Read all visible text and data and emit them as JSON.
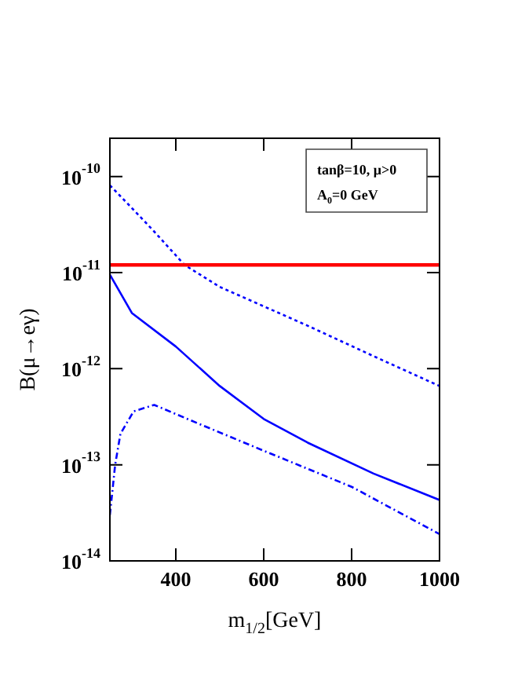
{
  "chart_data": {
    "type": "line",
    "xlabel": "m$_{1/2}$[GeV]",
    "ylabel": "B(μ→eγ)",
    "annotations": [
      "tanβ=10, μ>0",
      "A$_{0}$=0 GeV"
    ],
    "log": "y",
    "grid": false,
    "legend": false,
    "marker": "none",
    "xlim": [
      250,
      1000
    ],
    "xticks": [
      400,
      600,
      800,
      1000
    ],
    "ylim": [
      1e-14,
      2.5e-10
    ],
    "yticks": [
      {
        "value": 1e-14,
        "label": "10$^{-14}$"
      },
      {
        "value": 1e-13,
        "label": "10$^{-13}$"
      },
      {
        "value": 1e-12,
        "label": "10$^{-12}$"
      },
      {
        "value": 1e-11,
        "label": "10$^{-11}$"
      },
      {
        "value": 1e-10,
        "label": "10$^{-10}$"
      }
    ],
    "ref_lines": [
      {
        "axis": "y",
        "value": 1.2e-11,
        "color": "#ff0000"
      }
    ],
    "series": [
      {
        "color": "#0000ff",
        "line_style": "dotted",
        "x": [
          250,
          300,
          350,
          420,
          500,
          700,
          850,
          1000
        ],
        "values": [
          8.1e-11,
          4.7e-11,
          2.7e-11,
          1.2e-11,
          7.1e-12,
          2.8e-12,
          1.35e-12,
          6.6e-13
        ]
      },
      {
        "color": "#0000ff",
        "line_style": "solid",
        "x": [
          250,
          300,
          400,
          500,
          600,
          700,
          850,
          1000
        ],
        "values": [
          9.5e-12,
          3.8e-12,
          1.7e-12,
          6.6e-13,
          3e-13,
          1.7e-13,
          8.1e-14,
          4.3e-14
        ]
      },
      {
        "color": "#0000ff",
        "line_style": "dashed",
        "x": [
          250,
          262,
          274,
          304,
          351,
          450,
          600,
          800,
          1000
        ],
        "values": [
          3e-14,
          1e-13,
          2.1e-13,
          3.6e-13,
          4.2e-13,
          2.7e-13,
          1.4e-13,
          5.9e-14,
          1.9e-14
        ]
      }
    ]
  }
}
